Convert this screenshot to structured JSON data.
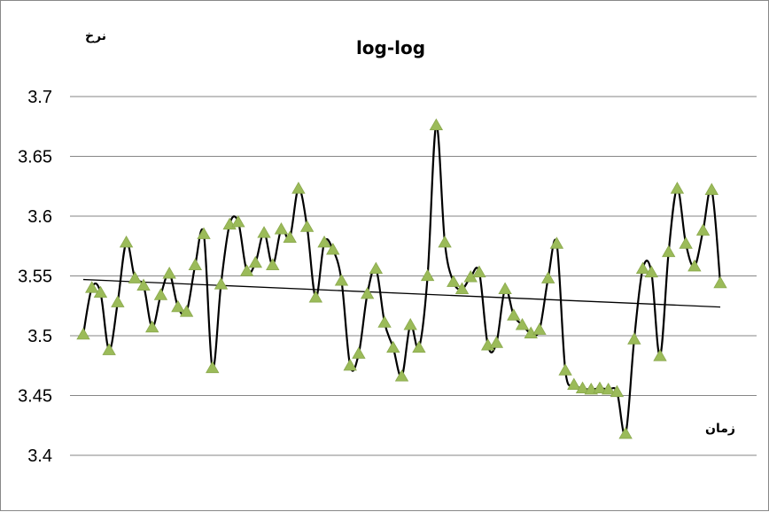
{
  "chart_data": {
    "type": "line",
    "title": "log-log",
    "ylabel": "نرخ",
    "xlabel": "زمان",
    "ylim": [
      3.4,
      3.7
    ],
    "yticks": [
      "3.4",
      "3.45",
      "3.5",
      "3.55",
      "3.6",
      "3.65",
      "3.7"
    ],
    "grid": true,
    "legend": "none",
    "series": [
      {
        "values": [
          3.501,
          3.54,
          3.536,
          3.488,
          3.528,
          3.578,
          3.548,
          3.542,
          3.507,
          3.534,
          3.552,
          3.524,
          3.52,
          3.559,
          3.585,
          3.473,
          3.543,
          3.593,
          3.595,
          3.554,
          3.561,
          3.586,
          3.559,
          3.589,
          3.582,
          3.623,
          3.591,
          3.532,
          3.578,
          3.572,
          3.546,
          3.475,
          3.485,
          3.535,
          3.556,
          3.511,
          3.49,
          3.466,
          3.509,
          3.49,
          3.55,
          3.676,
          3.578,
          3.545,
          3.539,
          3.549,
          3.553,
          3.492,
          3.494,
          3.539,
          3.517,
          3.509,
          3.502,
          3.505,
          3.548,
          3.577,
          3.471,
          3.459,
          3.456,
          3.455,
          3.456,
          3.455,
          3.453,
          3.418,
          3.497,
          3.556,
          3.553,
          3.483,
          3.57,
          3.623,
          3.577,
          3.558,
          3.588,
          3.622,
          3.544
        ]
      }
    ],
    "trendline": {
      "start": 3.547,
      "end": 3.524
    },
    "colors": {
      "line": "#000000",
      "marker": "#9bbb59",
      "grid": "#868686",
      "trend": "#000000"
    }
  }
}
